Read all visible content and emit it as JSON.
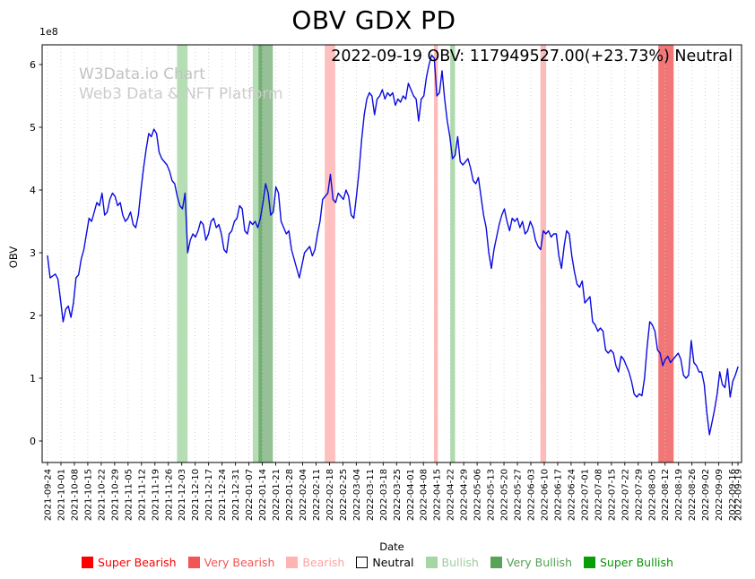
{
  "title": "OBV GDX PD",
  "annotation": "2022-09-19 OBV: 117949527.00(+23.73%) Neutral",
  "watermark": {
    "line1": "W3Data.io Chart",
    "line2": "Web3 Data & NFT Platform"
  },
  "axes": {
    "y_label": "OBV",
    "x_label": "Date",
    "y_offset_label": "1e8",
    "y_ticks": [
      0,
      1,
      2,
      3,
      4,
      5,
      6
    ]
  },
  "legend": [
    {
      "label": "Super Bearish",
      "color": "#ff0000",
      "edge": "#ff0000",
      "text_color": "#ff0000"
    },
    {
      "label": "Very Bearish",
      "color": "#f25555",
      "edge": "#f25555",
      "text_color": "#f25555"
    },
    {
      "label": "Bearish",
      "color": "#ffb3b3",
      "edge": "#ffb3b3",
      "text_color": "#ffa3a3"
    },
    {
      "label": "Neutral",
      "color": "#ffffff",
      "edge": "#000000",
      "text_color": "#000000"
    },
    {
      "label": "Bullish",
      "color": "#a5d6a5",
      "edge": "#a5d6a5",
      "text_color": "#9ccc9c"
    },
    {
      "label": "Very Bullish",
      "color": "#59a359",
      "edge": "#59a359",
      "text_color": "#55a055"
    },
    {
      "label": "Super Bullish",
      "color": "#0a9d0a",
      "edge": "#0a9d0a",
      "text_color": "#089308"
    }
  ],
  "chart_data": {
    "type": "line",
    "title": "OBV GDX PD",
    "xlabel": "Date",
    "ylabel": "OBV",
    "line_color": "#0b0be0",
    "grid": "vertical-dotted",
    "ylim_1e8": [
      -0.35,
      6.31
    ],
    "x_start_date": "2021-09-24",
    "x_end_date": "2022-09-19",
    "latest": {
      "date": "2022-09-19",
      "obv": "117949527.00",
      "change_pct": "+23.73%",
      "signal": "Neutral"
    },
    "x_tick_labels": [
      "2021-09-24",
      "2021-10-01",
      "2021-10-08",
      "2021-10-15",
      "2021-10-22",
      "2021-10-29",
      "2021-11-05",
      "2021-11-12",
      "2021-11-19",
      "2021-11-26",
      "2021-12-03",
      "2021-12-10",
      "2021-12-17",
      "2021-12-24",
      "2021-12-31",
      "2022-01-07",
      "2022-01-14",
      "2022-01-21",
      "2022-01-28",
      "2022-02-04",
      "2022-02-11",
      "2022-02-18",
      "2022-02-25",
      "2022-03-04",
      "2022-03-11",
      "2022-03-18",
      "2022-03-25",
      "2022-04-01",
      "2022-04-08",
      "2022-04-15",
      "2022-04-22",
      "2022-04-29",
      "2022-05-06",
      "2022-05-13",
      "2022-05-20",
      "2022-05-27",
      "2022-06-03",
      "2022-06-10",
      "2022-06-17",
      "2022-06-24",
      "2022-07-01",
      "2022-07-08",
      "2022-07-15",
      "2022-07-22",
      "2022-07-29",
      "2022-08-05",
      "2022-08-12",
      "2022-08-19",
      "2022-08-26",
      "2022-09-02",
      "2022-09-09",
      "2022-09-16",
      "2022-09-19"
    ],
    "bands": [
      {
        "signal": "bullish",
        "start_day": 67.5,
        "end_day": 73,
        "color": "rgba(120,195,120,0.55)"
      },
      {
        "signal": "very-bullish",
        "start_day": 107,
        "end_day": 112,
        "color": "rgba(110,185,110,0.5)"
      },
      {
        "signal": "very-bullish",
        "start_day": 110,
        "end_day": 117.5,
        "color": "rgba(45,130,45,0.5)"
      },
      {
        "signal": "bearish",
        "start_day": 144.5,
        "end_day": 150,
        "color": "rgba(255,130,130,0.5)"
      },
      {
        "signal": "bearish",
        "start_day": 201.5,
        "end_day": 203.5,
        "color": "rgba(255,130,130,0.55)"
      },
      {
        "signal": "bullish",
        "start_day": 210,
        "end_day": 212.5,
        "color": "rgba(120,195,120,0.6)"
      },
      {
        "signal": "bearish",
        "start_day": 257,
        "end_day": 260,
        "color": "rgba(255,130,130,0.55)"
      },
      {
        "signal": "very-bearish",
        "start_day": 318.5,
        "end_day": 326.5,
        "color": "rgba(238,60,60,0.7)"
      }
    ],
    "values_unit": "1e8",
    "values_1e8": [
      2.95,
      2.6,
      2.63,
      2.66,
      2.58,
      2.25,
      1.9,
      2.1,
      2.15,
      1.97,
      2.2,
      2.6,
      2.65,
      2.9,
      3.05,
      3.3,
      3.55,
      3.5,
      3.65,
      3.8,
      3.75,
      3.95,
      3.6,
      3.65,
      3.85,
      3.95,
      3.9,
      3.75,
      3.8,
      3.6,
      3.5,
      3.55,
      3.65,
      3.45,
      3.4,
      3.6,
      4.0,
      4.35,
      4.65,
      4.9,
      4.85,
      4.97,
      4.9,
      4.6,
      4.5,
      4.45,
      4.4,
      4.3,
      4.15,
      4.1,
      3.9,
      3.75,
      3.7,
      3.95,
      3.0,
      3.2,
      3.3,
      3.25,
      3.35,
      3.5,
      3.45,
      3.2,
      3.3,
      3.5,
      3.55,
      3.4,
      3.45,
      3.3,
      3.05,
      3.0,
      3.3,
      3.35,
      3.5,
      3.55,
      3.75,
      3.7,
      3.35,
      3.3,
      3.5,
      3.45,
      3.5,
      3.4,
      3.55,
      3.8,
      4.1,
      3.95,
      3.6,
      3.65,
      4.05,
      3.95,
      3.5,
      3.4,
      3.3,
      3.35,
      3.05,
      2.9,
      2.75,
      2.6,
      2.8,
      3.0,
      3.05,
      3.1,
      2.95,
      3.05,
      3.3,
      3.5,
      3.85,
      3.9,
      3.95,
      4.25,
      3.85,
      3.8,
      3.95,
      3.9,
      3.85,
      4.0,
      3.9,
      3.6,
      3.55,
      3.9,
      4.3,
      4.8,
      5.2,
      5.45,
      5.55,
      5.5,
      5.2,
      5.45,
      5.5,
      5.6,
      5.45,
      5.55,
      5.5,
      5.55,
      5.35,
      5.45,
      5.4,
      5.5,
      5.45,
      5.7,
      5.6,
      5.5,
      5.45,
      5.1,
      5.45,
      5.5,
      5.8,
      6.0,
      6.15,
      6.1,
      5.5,
      5.55,
      5.9,
      5.45,
      5.1,
      4.85,
      4.5,
      4.55,
      4.85,
      4.45,
      4.4,
      4.45,
      4.5,
      4.35,
      4.15,
      4.1,
      4.2,
      3.9,
      3.6,
      3.4,
      3.0,
      2.75,
      3.05,
      3.25,
      3.45,
      3.6,
      3.7,
      3.5,
      3.35,
      3.55,
      3.5,
      3.55,
      3.4,
      3.5,
      3.3,
      3.35,
      3.5,
      3.4,
      3.2,
      3.1,
      3.05,
      3.35,
      3.3,
      3.35,
      3.25,
      3.3,
      3.3,
      2.95,
      2.75,
      3.1,
      3.35,
      3.3,
      2.95,
      2.7,
      2.5,
      2.45,
      2.55,
      2.2,
      2.25,
      2.3,
      1.9,
      1.85,
      1.75,
      1.8,
      1.75,
      1.45,
      1.4,
      1.45,
      1.4,
      1.2,
      1.1,
      1.35,
      1.3,
      1.2,
      1.1,
      0.95,
      0.75,
      0.7,
      0.75,
      0.72,
      1.0,
      1.5,
      1.9,
      1.85,
      1.75,
      1.45,
      1.4,
      1.2,
      1.3,
      1.35,
      1.25,
      1.3,
      1.35,
      1.4,
      1.3,
      1.05,
      1.0,
      1.05,
      1.6,
      1.25,
      1.2,
      1.1,
      1.1,
      0.9,
      0.45,
      0.1,
      0.3,
      0.5,
      0.75,
      1.1,
      0.9,
      0.85,
      1.15,
      0.7,
      0.95,
      1.05,
      1.18
    ]
  }
}
